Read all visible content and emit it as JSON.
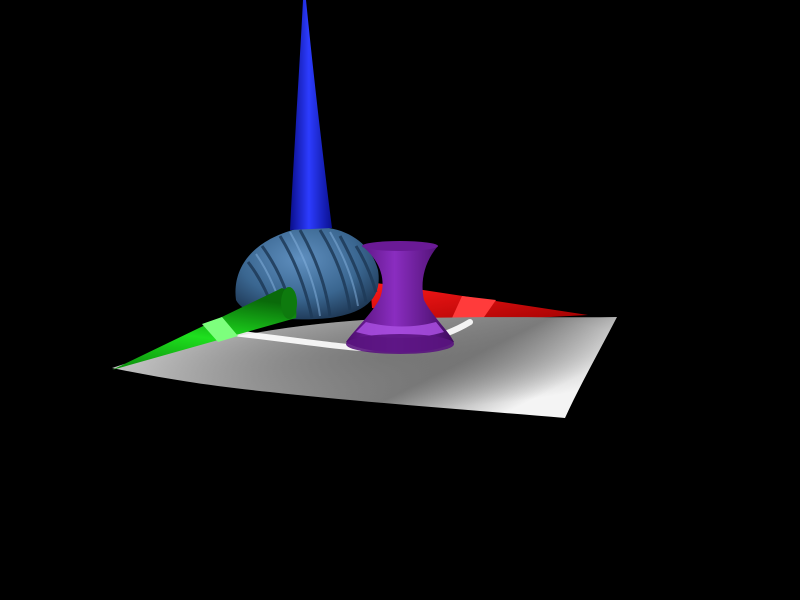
{
  "scene": {
    "background": "#000000",
    "objects": [
      {
        "name": "ground-plane",
        "shape": "curved-surface",
        "color": "#9a9a9a"
      },
      {
        "name": "blue-spike",
        "shape": "cone",
        "color": "#1f2fd6"
      },
      {
        "name": "twisted-dome",
        "shape": "twisted-dome",
        "color": "#3e6a92"
      },
      {
        "name": "green-cone",
        "shape": "cone",
        "color": "#12c412"
      },
      {
        "name": "red-cone",
        "shape": "cone",
        "color": "#d80000"
      },
      {
        "name": "purple-hyperboloid",
        "shape": "hyperboloid",
        "color": "#7a1fa6"
      }
    ]
  }
}
